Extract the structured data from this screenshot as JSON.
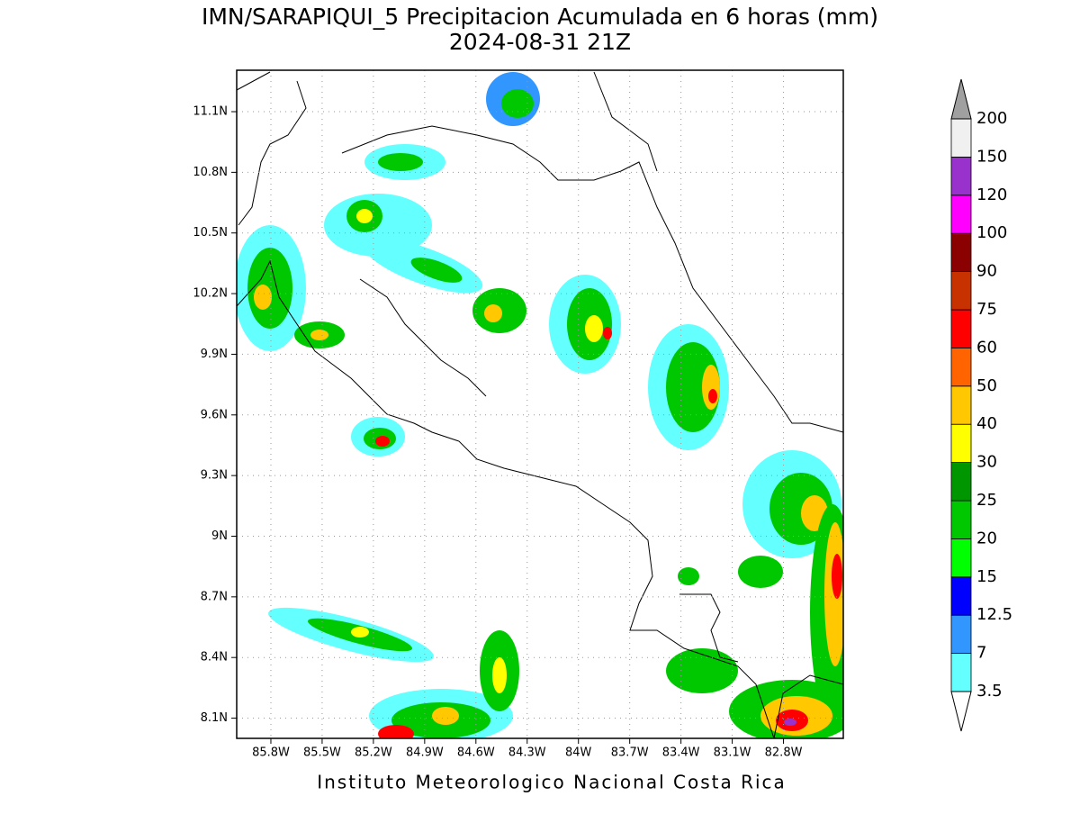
{
  "map": {
    "title": "IMN/SARAPIQUI_5 Precipitacion Acumulada en 6 horas (mm)",
    "subtitle": "2024-08-31 21Z",
    "footer": "Instituto Meteorologico Nacional Costa Rica",
    "lon_range": [
      86.0,
      82.45
    ],
    "lat_range": [
      8.0,
      11.305
    ],
    "lon_ticks": [
      {
        "value": 85.8,
        "label": "85.8W"
      },
      {
        "value": 85.5,
        "label": "85.5W"
      },
      {
        "value": 85.2,
        "label": "85.2W"
      },
      {
        "value": 84.9,
        "label": "84.9W"
      },
      {
        "value": 84.6,
        "label": "84.6W"
      },
      {
        "value": 84.3,
        "label": "84.3W"
      },
      {
        "value": 84,
        "label": "84W"
      },
      {
        "value": 83.7,
        "label": "83.7W"
      },
      {
        "value": 83.4,
        "label": "83.4W"
      },
      {
        "value": 83.1,
        "label": "83.1W"
      },
      {
        "value": 82.8,
        "label": "82.8W"
      }
    ],
    "lat_ticks": [
      {
        "value": 11.1,
        "label": "11.1N"
      },
      {
        "value": 10.8,
        "label": "10.8N"
      },
      {
        "value": 10.5,
        "label": "10.5N"
      },
      {
        "value": 10.2,
        "label": "10.2N"
      },
      {
        "value": 9.9,
        "label": "9.9N"
      },
      {
        "value": 9.6,
        "label": "9.6N"
      },
      {
        "value": 9.3,
        "label": "9.3N"
      },
      {
        "value": 9,
        "label": "9N"
      },
      {
        "value": 8.7,
        "label": "8.7N"
      },
      {
        "value": 8.4,
        "label": "8.4N"
      },
      {
        "value": 8.1,
        "label": "8.1N"
      }
    ],
    "colorbar": {
      "levels": [
        3.5,
        7,
        12.5,
        15,
        20,
        25,
        30,
        40,
        50,
        60,
        75,
        90,
        100,
        120,
        150,
        200
      ],
      "colors": [
        "#64ffff",
        "#3296ff",
        "#0000ff",
        "#00ff00",
        "#00c800",
        "#009600",
        "#ffff00",
        "#ffc800",
        "#ff6400",
        "#ff0000",
        "#c83200",
        "#8b0000",
        "#ff00ff",
        "#9932cc",
        "#f0f0f0"
      ],
      "over_color": "#a0a0a0"
    }
  }
}
